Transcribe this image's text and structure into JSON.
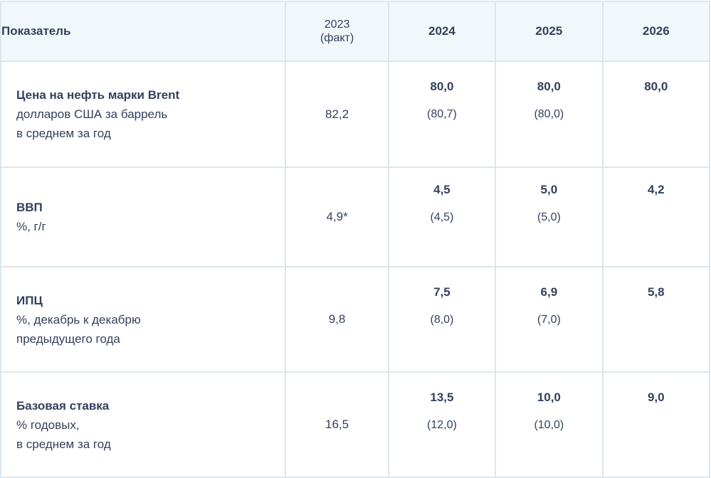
{
  "header": {
    "indicator": "Показатель",
    "fact_year": "2023",
    "fact_note": "(факт)",
    "years": [
      "2024",
      "2025",
      "2026"
    ]
  },
  "rows": [
    {
      "name": "Цена на нефть марки Brent",
      "units": [
        "долларов США за баррель",
        "в среднем за год"
      ],
      "fact": "82,2",
      "forecast": [
        {
          "main": "80,0",
          "prev": "(80,7)"
        },
        {
          "main": "80,0",
          "prev": "(80,0)"
        },
        {
          "main": "80,0",
          "prev": ""
        }
      ]
    },
    {
      "name": "ВВП",
      "units": [
        "%, г/г"
      ],
      "fact": "4,9*",
      "forecast": [
        {
          "main": "4,5",
          "prev": "(4,5)"
        },
        {
          "main": "5,0",
          "prev": "(5,0)"
        },
        {
          "main": "4,2",
          "prev": ""
        }
      ]
    },
    {
      "name": "ИПЦ",
      "units": [
        "%, декабрь к декабрю",
        "предыдущего года"
      ],
      "fact": "9,8",
      "forecast": [
        {
          "main": "7,5",
          "prev": "(8,0)"
        },
        {
          "main": "6,9",
          "prev": "(7,0)"
        },
        {
          "main": "5,8",
          "prev": ""
        }
      ]
    },
    {
      "name": "Базовая ставка",
      "units": [
        "% годовых,",
        "в среднем за год"
      ],
      "fact": "16,5",
      "forecast": [
        {
          "main": "13,5",
          "prev": "(12,0)"
        },
        {
          "main": "10,0",
          "prev": "(10,0)"
        },
        {
          "main": "9,0",
          "prev": ""
        }
      ]
    }
  ],
  "colors": {
    "text": "#33415c",
    "header_bg": "#f2f7fb",
    "border": "#dde6ee"
  }
}
